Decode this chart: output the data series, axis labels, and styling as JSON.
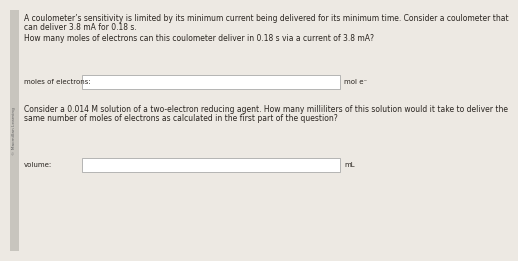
{
  "bg_color": "#ede9e3",
  "sidebar_color": "#c8c5be",
  "sidebar_text": "© Macmillan Learning",
  "title_lines": [
    "A coulometer’s sensitivity is limited by its minimum current being delivered for its minimum time. Consider a coulometer that",
    "can deliver 3.8 mA for 0.18 s."
  ],
  "question1": "How many moles of electrons can this coulometer deliver in 0.18 s via a current of 3.8 mA?",
  "label1": "moles of electrons:",
  "unit1": "mol e⁻",
  "question2": "Consider a 0.014 M solution of a two-electron reducing agent. How many milliliters of this solution would it take to deliver the\nsame number of moles of electrons as calculated in the first part of the question?",
  "label2": "volume:",
  "unit2": "mL",
  "box_fill": "#ffffff",
  "box_edge": "#aaaaaa",
  "text_color": "#2a2520",
  "font_size": 5.5,
  "small_font_size": 5.0
}
